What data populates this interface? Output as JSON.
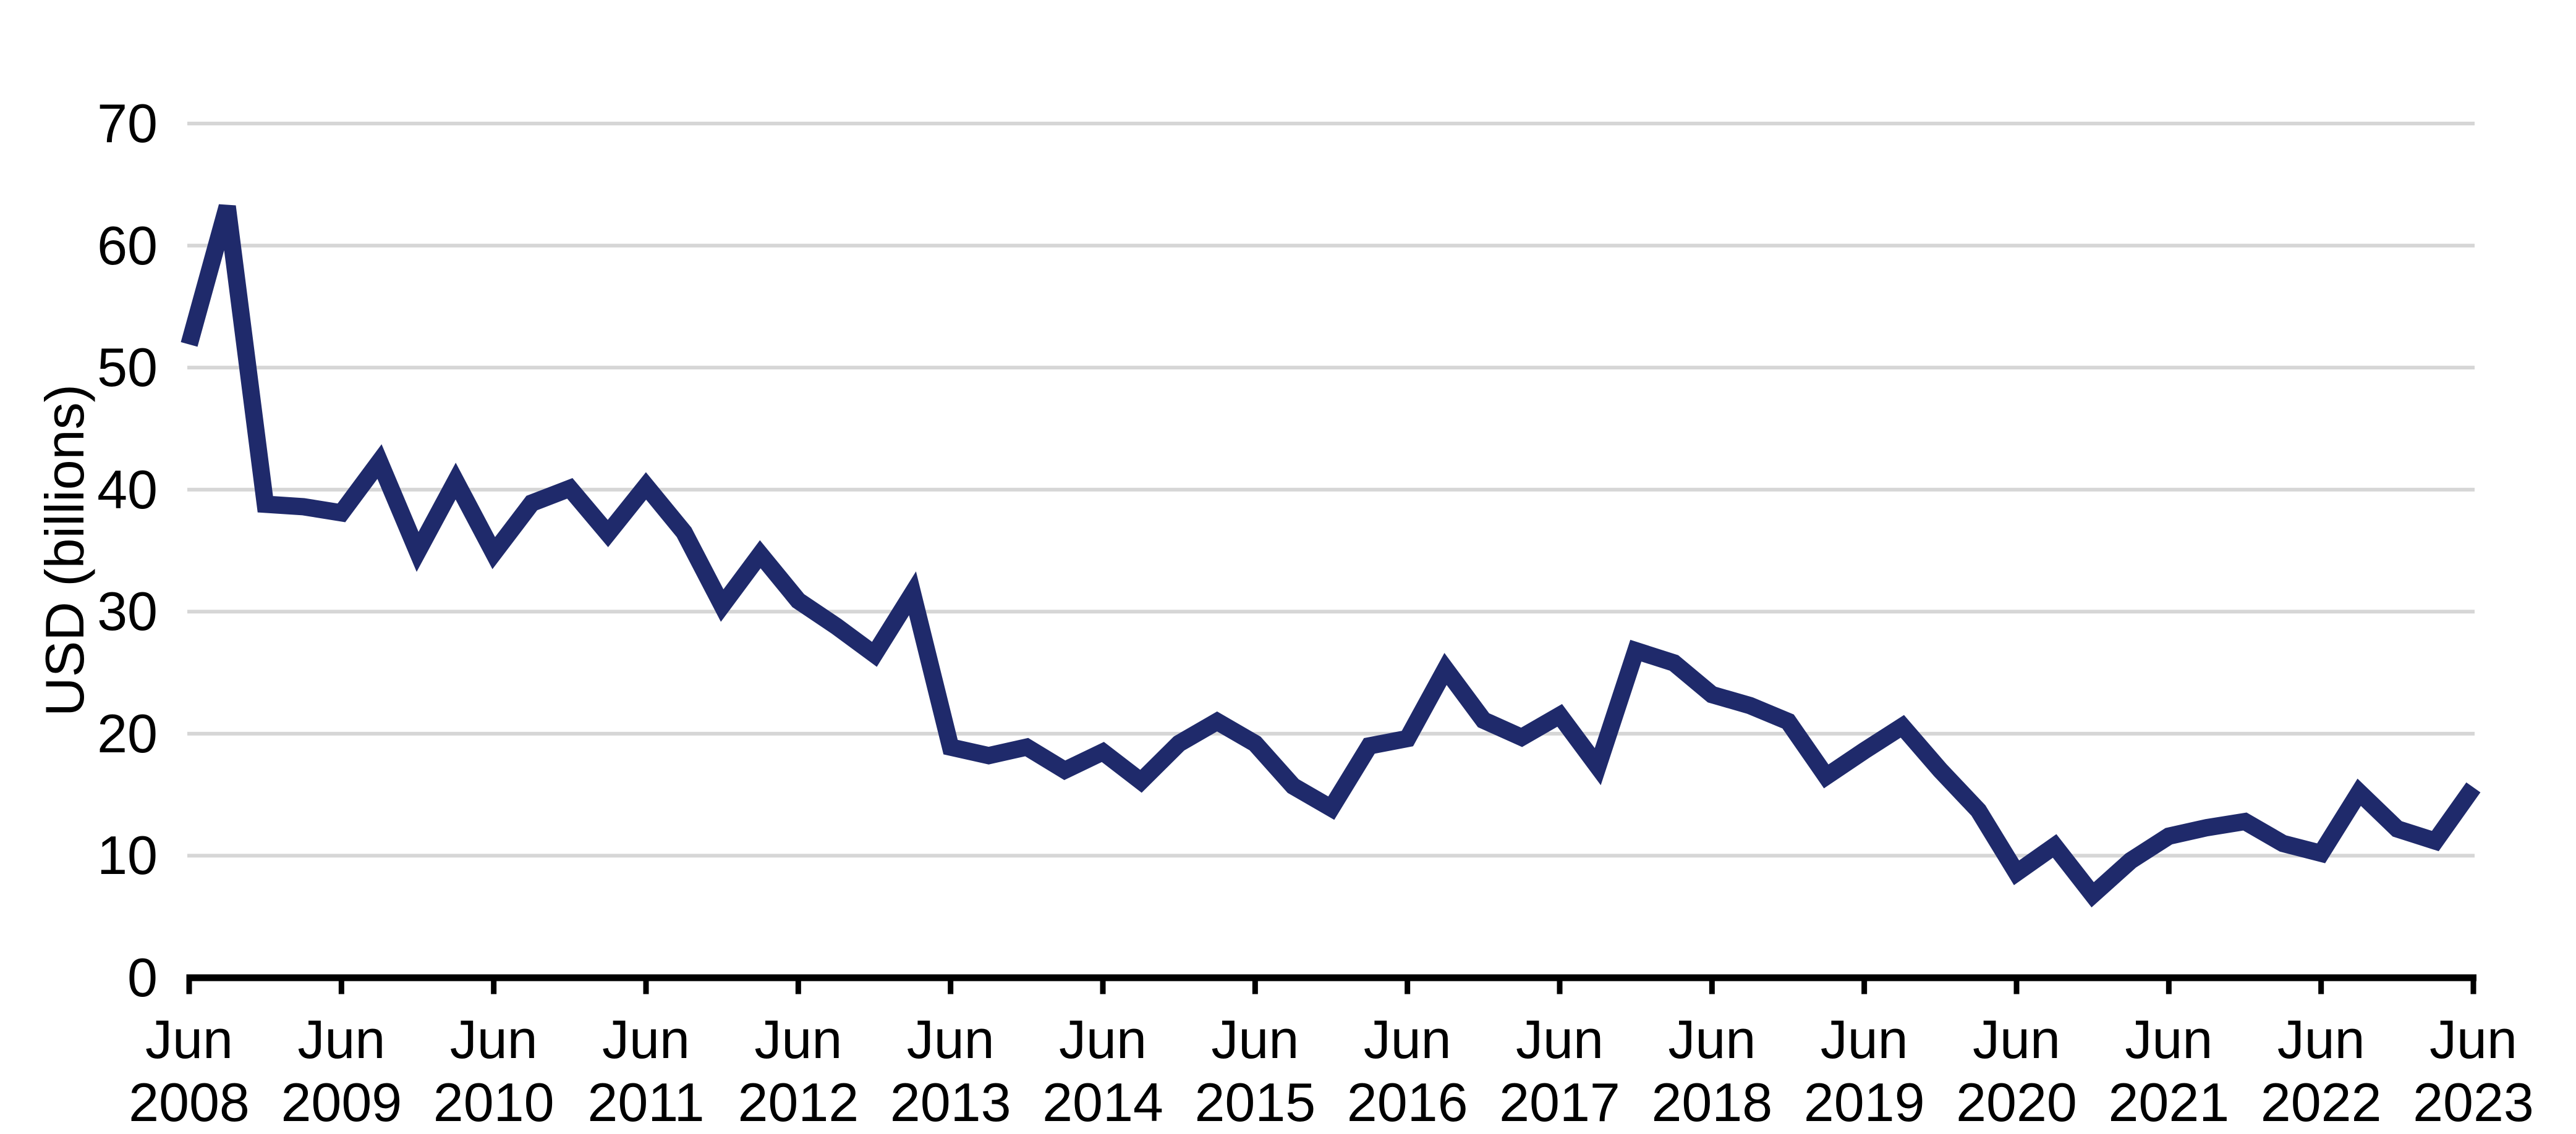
{
  "chart_data": {
    "type": "line",
    "title": "",
    "xlabel": "",
    "ylabel": "USD (billions)",
    "ylim": [
      0,
      70
    ],
    "y_ticks": [
      0,
      10,
      20,
      30,
      40,
      50,
      60,
      70
    ],
    "grid": "horizontal",
    "legend_position": "none",
    "x_frequency": "quarterly",
    "x": [
      "Jun 2008",
      "Sep 2008",
      "Dec 2008",
      "Mar 2009",
      "Jun 2009",
      "Sep 2009",
      "Dec 2009",
      "Mar 2010",
      "Jun 2010",
      "Sep 2010",
      "Dec 2010",
      "Mar 2011",
      "Jun 2011",
      "Sep 2011",
      "Dec 2011",
      "Mar 2012",
      "Jun 2012",
      "Sep 2012",
      "Dec 2012",
      "Mar 2013",
      "Jun 2013",
      "Sep 2013",
      "Dec 2013",
      "Mar 2014",
      "Jun 2014",
      "Sep 2014",
      "Dec 2014",
      "Mar 2015",
      "Jun 2015",
      "Sep 2015",
      "Dec 2015",
      "Mar 2016",
      "Jun 2016",
      "Sep 2016",
      "Dec 2016",
      "Mar 2017",
      "Jun 2017",
      "Sep 2017",
      "Dec 2017",
      "Mar 2018",
      "Jun 2018",
      "Sep 2018",
      "Dec 2018",
      "Mar 2019",
      "Jun 2019",
      "Sep 2019",
      "Dec 2019",
      "Mar 2020",
      "Jun 2020",
      "Sep 2020",
      "Dec 2020",
      "Mar 2021",
      "Jun 2021",
      "Sep 2021",
      "Dec 2021",
      "Mar 2022",
      "Jun 2022",
      "Sep 2022",
      "Dec 2022",
      "Mar 2023",
      "Jun 2023"
    ],
    "series": [
      {
        "name": "USD (billions)",
        "color": "#1f2a6b",
        "values": [
          51.9,
          63.2,
          38.8,
          38.6,
          38.1,
          42.3,
          34.9,
          40.7,
          34.8,
          38.9,
          40.1,
          36.4,
          40.3,
          36.5,
          30.5,
          34.7,
          30.9,
          28.8,
          26.5,
          31.5,
          18.9,
          18.2,
          18.9,
          17.0,
          18.5,
          16.1,
          19.2,
          21.0,
          19.2,
          15.7,
          13.9,
          19.0,
          19.6,
          25.3,
          21.1,
          19.7,
          21.5,
          17.3,
          26.8,
          25.8,
          23.2,
          22.3,
          21.0,
          16.5,
          18.6,
          20.6,
          17.0,
          13.7,
          8.6,
          10.8,
          6.8,
          9.6,
          11.6,
          12.3,
          12.8,
          11.0,
          10.2,
          15.2,
          12.2,
          11.2,
          15.6
        ]
      }
    ],
    "x_axis_tick_labels": [
      [
        "Jun",
        "2008"
      ],
      [
        "Jun",
        "2009"
      ],
      [
        "Jun",
        "2010"
      ],
      [
        "Jun",
        "2011"
      ],
      [
        "Jun",
        "2012"
      ],
      [
        "Jun",
        "2013"
      ],
      [
        "Jun",
        "2014"
      ],
      [
        "Jun",
        "2015"
      ],
      [
        "Jun",
        "2016"
      ],
      [
        "Jun",
        "2017"
      ],
      [
        "Jun",
        "2018"
      ],
      [
        "Jun",
        "2019"
      ],
      [
        "Jun",
        "2020"
      ],
      [
        "Jun",
        "2021"
      ],
      [
        "Jun",
        "2022"
      ],
      [
        "Jun",
        "2023"
      ]
    ]
  },
  "colors": {
    "line": "#1f2a6b",
    "gridline": "#d6d6d6",
    "axis": "#000000",
    "text": "#000000",
    "background": "#ffffff"
  }
}
